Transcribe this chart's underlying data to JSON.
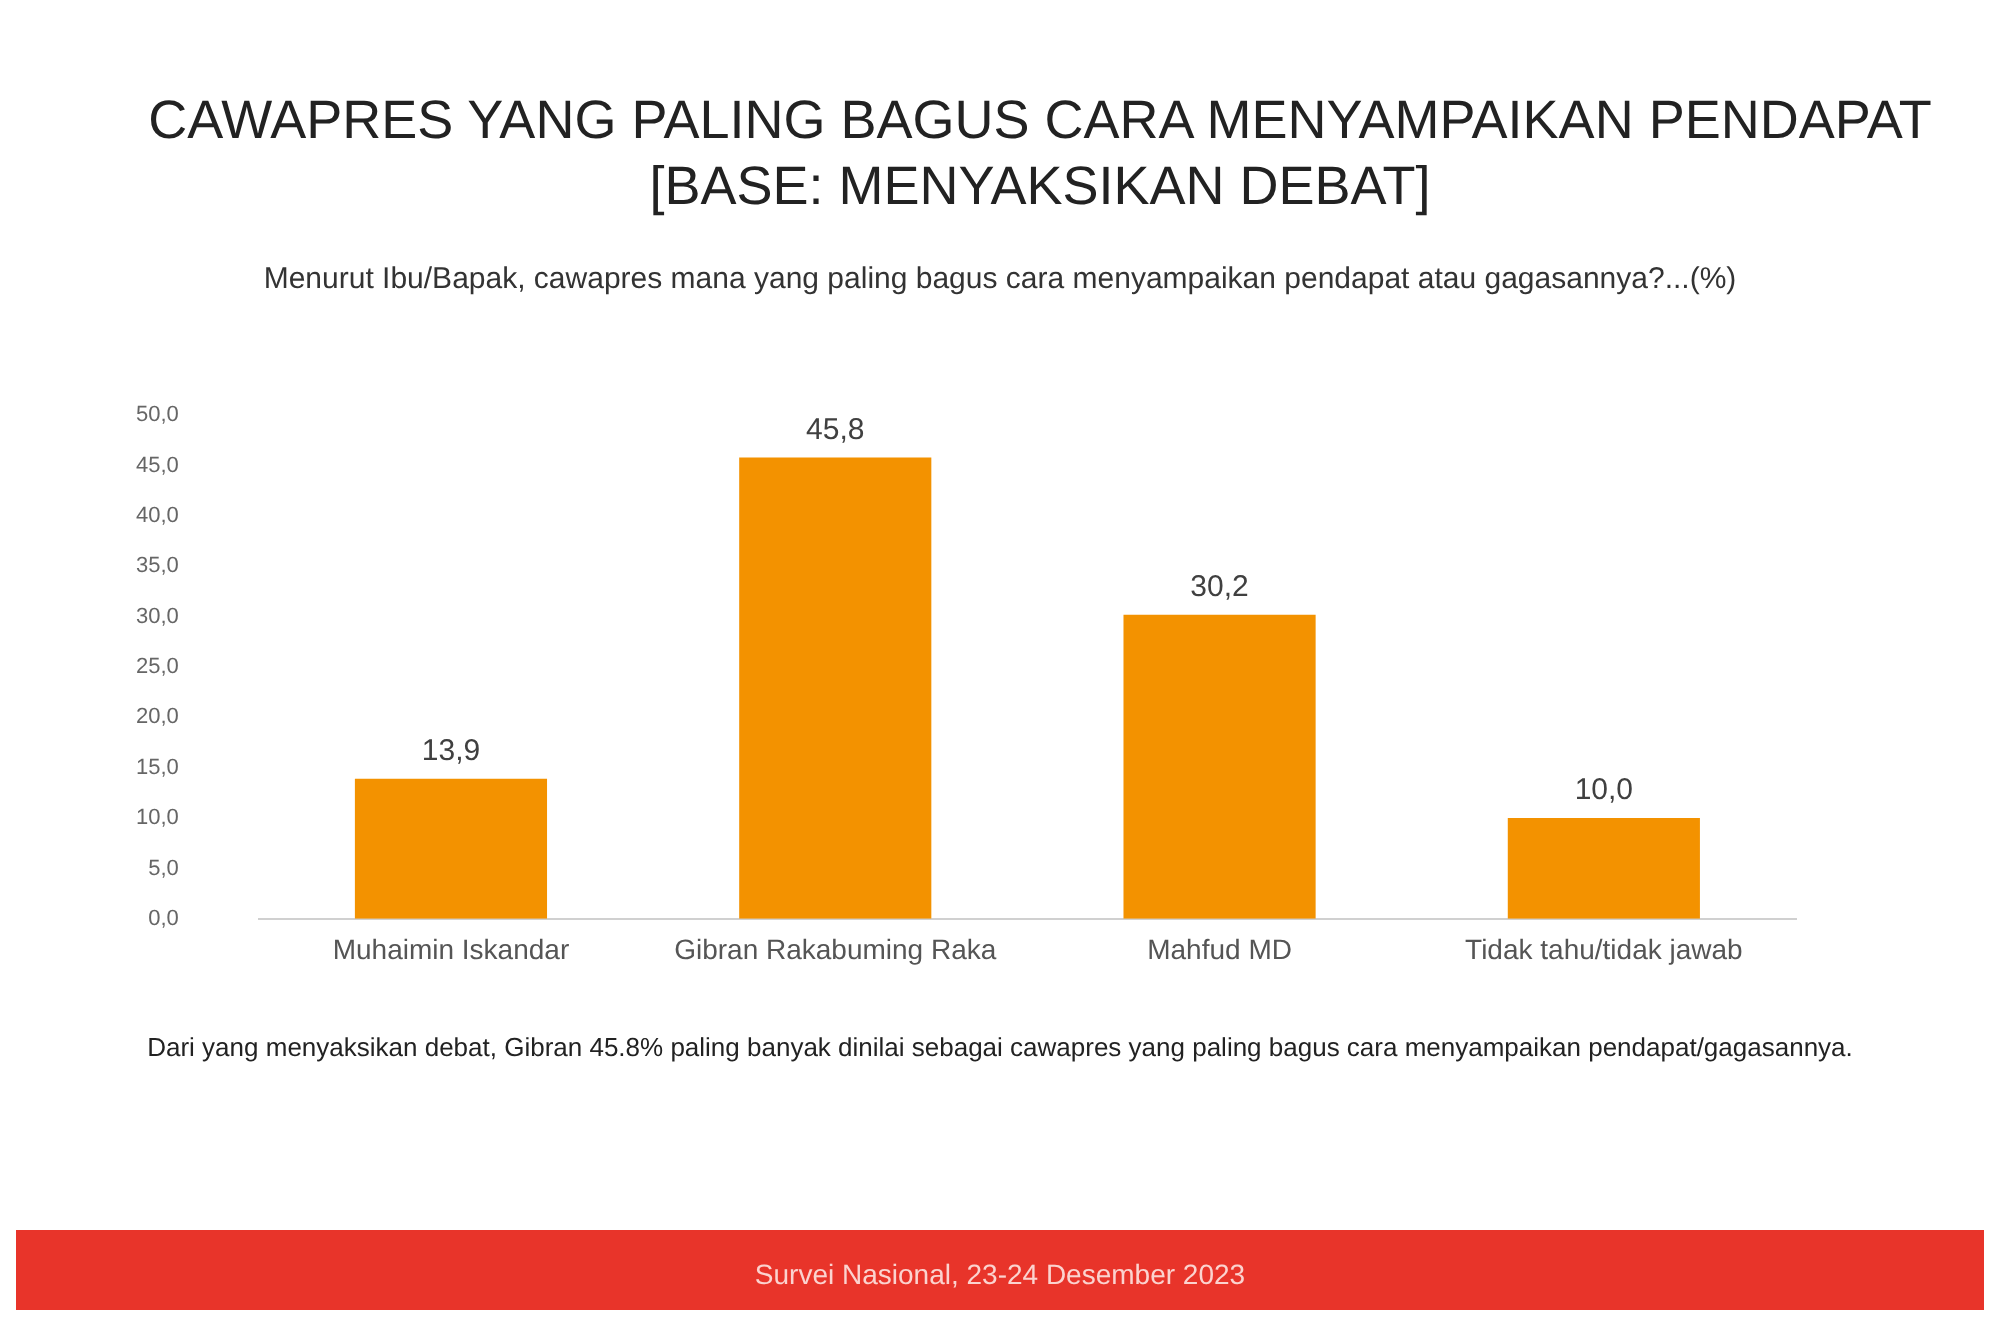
{
  "chart_data": {
    "type": "bar",
    "title": "CAWAPRES YANG PALING BAGUS CARA MENYAMPAIKAN PENDAPAT\n[BASE: MENYAKSIKAN DEBAT]",
    "subtitle": "Menurut Ibu/Bapak, cawapres mana yang paling bagus cara menyampaikan pendapat atau gagasannya?...(%)",
    "categories": [
      "Muhaimin Iskandar",
      "Gibran Rakabuming Raka",
      "Mahfud MD",
      "Tidak tahu/tidak jawab"
    ],
    "values": [
      13.9,
      45.8,
      30.2,
      10.0
    ],
    "value_labels": [
      "13,9",
      "45,8",
      "30,2",
      "10,0"
    ],
    "color": "#f39200",
    "ylim": [
      0,
      50
    ],
    "yticks": [
      {
        "value": 0,
        "label": "0,0"
      },
      {
        "value": 5,
        "label": "5,0"
      },
      {
        "value": 10,
        "label": "10,0"
      },
      {
        "value": 15,
        "label": "15,0"
      },
      {
        "value": 20,
        "label": "20,0"
      },
      {
        "value": 25,
        "label": "25,0"
      },
      {
        "value": 30,
        "label": "30,0"
      },
      {
        "value": 35,
        "label": "35,0"
      },
      {
        "value": 40,
        "label": "40,0"
      },
      {
        "value": 45,
        "label": "45,0"
      },
      {
        "value": 50,
        "label": "50,0"
      }
    ],
    "grid": false,
    "legend": false,
    "annotations": [
      "Dari yang menyaksikan debat, Gibran 45.8% paling banyak dinilai sebagai cawapres yang paling bagus cara menyampaikan pendapat/gagasannya.",
      "Survei Nasional, 23-24 Desember 2023"
    ]
  }
}
